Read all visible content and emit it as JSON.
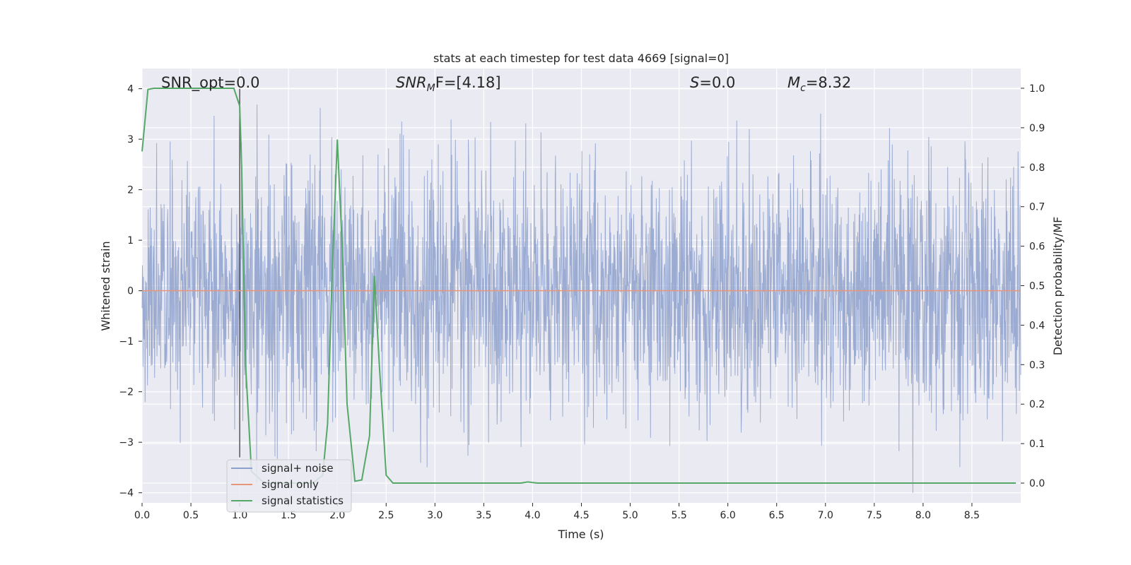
{
  "chart_data": {
    "type": "line",
    "title": "stats at each timestep for test data 4669 [signal=0]",
    "xlabel": "Time (s)",
    "ylabel": "Whitened strain",
    "y2label": "Detection probability/MF",
    "xlim": [
      0.0,
      9.0
    ],
    "ylim": [
      -4.2,
      4.4
    ],
    "y2lim": [
      -0.05,
      1.05
    ],
    "x_ticks": [
      "0.0",
      "0.5",
      "1.0",
      "1.5",
      "2.0",
      "2.5",
      "3.0",
      "3.5",
      "4.0",
      "4.5",
      "5.0",
      "5.5",
      "6.0",
      "6.5",
      "7.0",
      "7.5",
      "8.0",
      "8.5"
    ],
    "y_ticks": [
      "−4",
      "−3",
      "−2",
      "−1",
      "0",
      "1",
      "2",
      "3",
      "4"
    ],
    "y2_ticks": [
      "0.0",
      "0.1",
      "0.2",
      "0.3",
      "0.4",
      "0.5",
      "0.6",
      "0.7",
      "0.8",
      "0.9",
      "1.0"
    ],
    "grid": true,
    "legend_position": "lower-left",
    "annotations": {
      "snr_opt": "SNR_opt=0.0",
      "snr_mf_main": "SNR",
      "snr_mf_sub": "M",
      "snr_mf_rest": "F=[4.18]",
      "s_main": "S",
      "s_rest": "=0.0",
      "mc_main": "M",
      "mc_sub": "c",
      "mc_rest": "=8.32"
    },
    "series": [
      {
        "name": "signal+ noise",
        "color": "#8da0cb",
        "axis": "left",
        "style": "dense noise around 0, typical range ±2, peaks ±4",
        "approx_amplitude": 1.2,
        "x_range": [
          0.0,
          9.0
        ]
      },
      {
        "name": "signal only",
        "color": "#e8967a",
        "axis": "left",
        "x": [
          0.0,
          9.0
        ],
        "y": [
          0.0,
          0.0
        ]
      },
      {
        "name": "signal statistics",
        "color": "#55a868",
        "axis": "right",
        "x": [
          0.0,
          0.06,
          0.12,
          0.2,
          0.4,
          0.6,
          0.8,
          0.94,
          1.0,
          1.02,
          1.06,
          1.12,
          1.25,
          1.5,
          1.75,
          1.85,
          1.9,
          1.95,
          2.0,
          2.05,
          2.1,
          2.18,
          2.25,
          2.33,
          2.38,
          2.43,
          2.5,
          2.57,
          2.7,
          3.0,
          3.5,
          3.88,
          3.95,
          4.05,
          4.5,
          5.0,
          6.0,
          7.0,
          8.0,
          8.95
        ],
        "y": [
          0.84,
          0.997,
          1.0,
          1.0,
          1.0,
          1.0,
          1.0,
          1.0,
          0.955,
          0.8,
          0.3,
          0.03,
          0.0,
          0.0,
          0.0,
          0.02,
          0.15,
          0.55,
          0.87,
          0.6,
          0.2,
          0.005,
          0.008,
          0.12,
          0.525,
          0.3,
          0.02,
          0.0,
          0.0,
          0.0,
          0.0,
          0.0,
          0.003,
          0.0,
          0.0,
          0.0,
          0.0,
          0.0,
          0.0,
          0.0
        ]
      }
    ],
    "vertical_marker": {
      "x": 1.0,
      "color": "#555555"
    }
  }
}
